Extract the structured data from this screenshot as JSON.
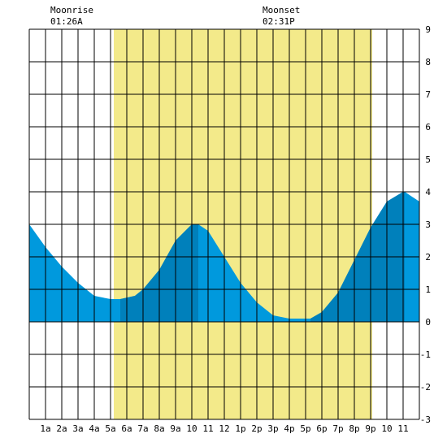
{
  "moon": {
    "rise_label": "Moonrise",
    "rise_time": "01:26A",
    "set_label": "Moonset",
    "set_time": "02:31P"
  },
  "chart_data": {
    "type": "area",
    "x_tick_labels": [
      "1a",
      "2a",
      "3a",
      "4a",
      "5a",
      "6a",
      "7a",
      "8a",
      "9a",
      "10",
      "11",
      "12",
      "1p",
      "2p",
      "3p",
      "4p",
      "5p",
      "6p",
      "7p",
      "8p",
      "9p",
      "10",
      "11"
    ],
    "y_tick_labels": [
      "9",
      "8",
      "7",
      "6",
      "5",
      "4",
      "3",
      "2",
      "1",
      "0",
      "-1",
      "-2",
      "-3"
    ],
    "ylim": [
      -3,
      9
    ],
    "xlim_hours": [
      0,
      24
    ],
    "daylight_hours": [
      5.2,
      21.1
    ],
    "tide_height": {
      "x": [
        0,
        1,
        2,
        3,
        4,
        5,
        5.6,
        6.5,
        7,
        8,
        9,
        10,
        10.4,
        11,
        12,
        13,
        14,
        15,
        16,
        17,
        17.3,
        18,
        19,
        20,
        21,
        22,
        23,
        23.1,
        24
      ],
      "y": [
        3.0,
        2.3,
        1.7,
        1.2,
        0.8,
        0.7,
        0.7,
        0.8,
        1.0,
        1.6,
        2.5,
        3.0,
        3.0,
        2.8,
        2.0,
        1.2,
        0.6,
        0.2,
        0.1,
        0.1,
        0.1,
        0.3,
        0.9,
        1.9,
        2.9,
        3.7,
        4.0,
        4.0,
        3.7
      ]
    },
    "dark_bands": [
      {
        "x0": 5.6,
        "x1": 10.4
      },
      {
        "x0": 17.3,
        "x1": 23.1
      }
    ],
    "colors": {
      "tide": "#0099dd",
      "tide_dark": "#0080bb",
      "daylight": "#f3ea8a",
      "grid": "#000000"
    }
  }
}
